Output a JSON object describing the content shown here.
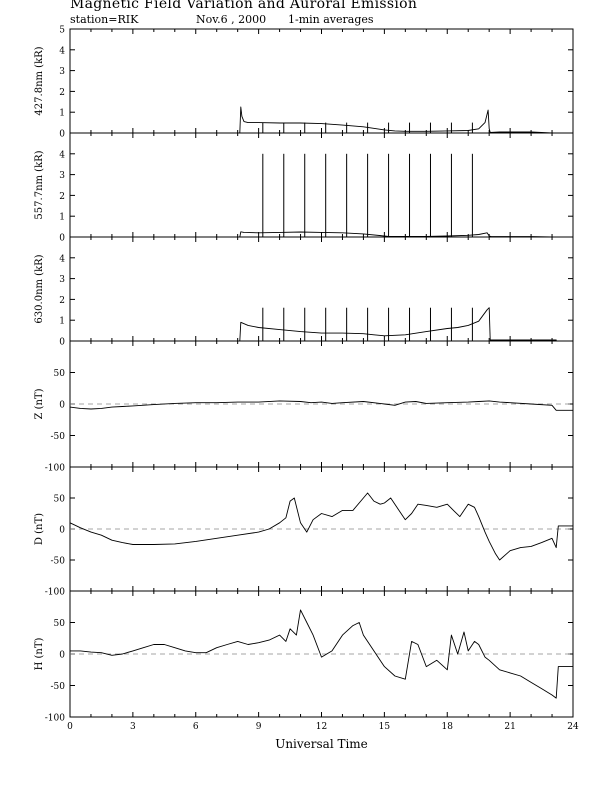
{
  "header": {
    "title": "Magnetic Field Variation and Auroral Emission",
    "station": "station=RIK",
    "date": "Nov.6  , 2000",
    "averaging": "1-min averages"
  },
  "colors": {
    "trace": "#000000",
    "zero_line": "#888888",
    "axis": "#000000"
  },
  "chart_data": [
    {
      "type": "line",
      "ylabel": "427.8nm (kR)",
      "ylim": [
        0,
        5
      ],
      "yticks": [
        0,
        1,
        2,
        3,
        4,
        5
      ],
      "xlim": [
        0,
        24
      ],
      "zero_line": false,
      "series": [
        {
          "x": [
            0,
            8.1,
            8.15,
            8.2,
            8.3,
            8.5,
            9,
            10,
            11,
            12,
            13,
            14,
            15,
            15.5,
            16,
            17,
            18,
            19,
            19.5,
            19.8,
            19.95,
            20.0,
            20.05,
            20.5,
            21,
            22,
            23
          ],
          "y": [
            0,
            0,
            1.25,
            0.8,
            0.55,
            0.5,
            0.5,
            0.48,
            0.48,
            0.45,
            0.38,
            0.3,
            0.15,
            0.1,
            0.08,
            0.08,
            0.1,
            0.12,
            0.2,
            0.5,
            1.1,
            0.2,
            0.03,
            0.05,
            0.05,
            0.05,
            0
          ],
          "spikes_at": [
            9.2,
            10.2,
            11.2,
            12.2,
            13.2,
            14.2,
            15.2,
            16.2,
            17.2,
            18.2,
            19.2
          ],
          "spike_height": 0.5
        }
      ]
    },
    {
      "type": "line",
      "ylabel": "557.7nm (kR)",
      "ylim": [
        0,
        5
      ],
      "yticks": [
        0,
        1,
        2,
        3,
        4
      ],
      "xlim": [
        0,
        24
      ],
      "zero_line": false,
      "series": [
        {
          "x": [
            0,
            8.1,
            8.15,
            8.3,
            9,
            10,
            11,
            12,
            13,
            14,
            15,
            15.2,
            16,
            17,
            18,
            19,
            19.5,
            19.9,
            20.0,
            20.1,
            21,
            22,
            23
          ],
          "y": [
            0,
            0,
            0.25,
            0.22,
            0.2,
            0.22,
            0.24,
            0.22,
            0.2,
            0.15,
            0.05,
            0.03,
            0.03,
            0.03,
            0.05,
            0.08,
            0.12,
            0.2,
            0.05,
            0.02,
            0.02,
            0.02,
            0
          ],
          "spikes_at": [
            9.2,
            10.2,
            11.2,
            12.2,
            13.2,
            14.2,
            15.2,
            16.2,
            17.2,
            18.2,
            19.2
          ],
          "spike_height": 4.0
        }
      ]
    },
    {
      "type": "line",
      "ylabel": "630.0nm (kR)",
      "ylim": [
        0,
        5
      ],
      "yticks": [
        0,
        1,
        2,
        3,
        4
      ],
      "xlim": [
        0,
        24
      ],
      "zero_line": false,
      "series": [
        {
          "x": [
            0,
            8.1,
            8.15,
            8.5,
            9,
            10,
            11,
            12,
            13,
            14,
            14.5,
            15,
            16,
            17,
            18,
            18.5,
            19,
            19.5,
            19.9,
            20.0,
            20.05,
            21,
            22,
            23.2,
            23.2,
            24
          ],
          "y": [
            0,
            0,
            0.9,
            0.75,
            0.65,
            0.55,
            0.45,
            0.38,
            0.38,
            0.35,
            0.3,
            0.25,
            0.3,
            0.45,
            0.6,
            0.65,
            0.75,
            0.95,
            1.5,
            1.6,
            0.05,
            0.05,
            0.05,
            0.05,
            0,
            0
          ],
          "spikes_at": [
            9.2,
            10.2,
            11.2,
            12.2,
            13.2,
            14.2,
            15.2,
            16.2,
            17.2,
            18.2,
            19.2
          ],
          "spike_height": 1.6
        }
      ]
    },
    {
      "type": "line",
      "ylabel": "Z (nT)",
      "ylim": [
        -100,
        100
      ],
      "yticks": [
        -100,
        -50,
        0,
        50
      ],
      "xlim": [
        0,
        24
      ],
      "zero_line": true,
      "series": [
        {
          "x": [
            0,
            0.5,
            1,
            1.5,
            2,
            2.5,
            3,
            4,
            5,
            6,
            7,
            8,
            9,
            10,
            11,
            11.5,
            12,
            12.5,
            13,
            14,
            15,
            15.5,
            16,
            16.5,
            17,
            18,
            19,
            19.5,
            20,
            20.5,
            21,
            22,
            23,
            23.2,
            24
          ],
          "y": [
            -5,
            -7,
            -8,
            -7,
            -5,
            -4,
            -3,
            -1,
            1,
            2,
            2,
            3,
            3,
            5,
            4,
            2,
            3,
            1,
            2,
            4,
            0,
            -2,
            3,
            4,
            1,
            2,
            3,
            4,
            5,
            3,
            2,
            0,
            -2,
            -10,
            -10
          ]
        }
      ]
    },
    {
      "type": "line",
      "ylabel": "D (nT)",
      "ylim": [
        -100,
        100
      ],
      "yticks": [
        -100,
        -50,
        0,
        50
      ],
      "xlim": [
        0,
        24
      ],
      "zero_line": true,
      "series": [
        {
          "x": [
            0,
            0.5,
            1,
            1.5,
            2,
            2.5,
            3,
            4,
            5,
            6,
            7,
            8,
            9,
            9.5,
            10,
            10.3,
            10.5,
            10.7,
            11,
            11.3,
            11.6,
            12,
            12.5,
            13,
            13.5,
            14,
            14.2,
            14.5,
            14.8,
            15,
            15.3,
            15.6,
            16,
            16.3,
            16.6,
            17,
            17.5,
            18,
            18.3,
            18.6,
            19,
            19.3,
            19.5,
            19.8,
            20,
            20.3,
            20.5,
            21,
            21.5,
            22,
            22.5,
            23,
            23.2,
            23.3,
            24
          ],
          "y": [
            10,
            2,
            -5,
            -10,
            -18,
            -22,
            -25,
            -25,
            -24,
            -20,
            -15,
            -10,
            -5,
            0,
            10,
            18,
            45,
            50,
            10,
            -5,
            15,
            25,
            20,
            30,
            30,
            50,
            58,
            45,
            40,
            42,
            50,
            35,
            15,
            25,
            40,
            38,
            35,
            40,
            30,
            20,
            40,
            35,
            20,
            -5,
            -20,
            -40,
            -50,
            -35,
            -30,
            -28,
            -22,
            -15,
            -30,
            5,
            5
          ]
        }
      ]
    },
    {
      "type": "line",
      "ylabel": "H (nT)",
      "ylim": [
        -100,
        100
      ],
      "yticks": [
        -100,
        -50,
        0,
        50
      ],
      "xlim": [
        0,
        24
      ],
      "zero_line": true,
      "series": [
        {
          "x": [
            0,
            0.5,
            1,
            1.5,
            2,
            2.5,
            3,
            3.5,
            4,
            4.5,
            5,
            5.5,
            6,
            6.5,
            7,
            7.5,
            8,
            8.5,
            9,
            9.5,
            10,
            10.3,
            10.5,
            10.8,
            11,
            11.3,
            11.6,
            12,
            12.5,
            13,
            13.5,
            13.8,
            14,
            14.5,
            15,
            15.5,
            16,
            16.3,
            16.6,
            17,
            17.5,
            18,
            18.2,
            18.5,
            18.8,
            19,
            19.3,
            19.5,
            19.8,
            20,
            20.5,
            21,
            21.5,
            22,
            22.5,
            23,
            23.2,
            23.3,
            24
          ],
          "y": [
            5,
            5,
            3,
            2,
            -2,
            0,
            5,
            10,
            15,
            15,
            10,
            5,
            2,
            2,
            10,
            15,
            20,
            15,
            18,
            22,
            30,
            20,
            40,
            30,
            70,
            50,
            30,
            -5,
            5,
            30,
            45,
            50,
            30,
            5,
            -20,
            -35,
            -40,
            20,
            15,
            -20,
            -10,
            -25,
            30,
            0,
            35,
            5,
            20,
            15,
            -5,
            -10,
            -25,
            -30,
            -35,
            -45,
            -55,
            -65,
            -70,
            -20,
            -20
          ]
        }
      ]
    }
  ],
  "x_axis": {
    "label": "Universal Time",
    "ticks": [
      0,
      3,
      6,
      9,
      12,
      15,
      18,
      21,
      24
    ],
    "tick_labels": [
      "0",
      "3",
      "6",
      "9",
      "12",
      "15",
      "18",
      "21",
      "24"
    ]
  }
}
